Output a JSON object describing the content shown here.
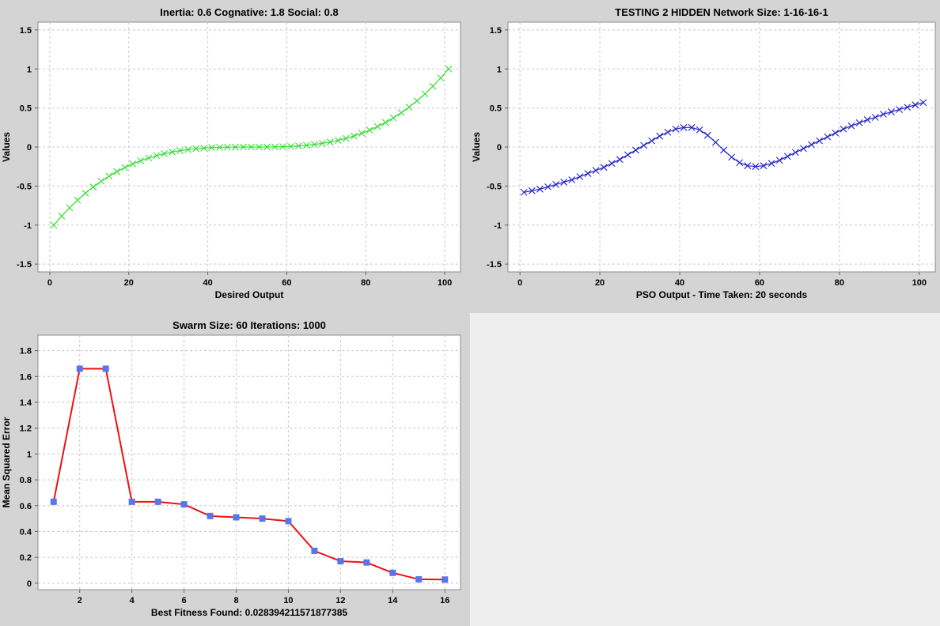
{
  "chart_data": [
    {
      "id": "desired",
      "type": "line",
      "title": "Inertia: 0.6 Cognative: 1.8 Social: 0.8",
      "xlabel": "Desired Output",
      "ylabel": "Values",
      "xlim": [
        -3,
        104
      ],
      "ylim": [
        -1.6,
        1.6
      ],
      "xticks": [
        0,
        20,
        40,
        60,
        80,
        100
      ],
      "yticks": [
        -1.5,
        -1,
        -0.5,
        0,
        0.5,
        1,
        1.5
      ],
      "grid": true,
      "marker": "x",
      "color": "#33dd33",
      "series": [
        {
          "x": [
            1,
            3,
            5,
            7,
            9,
            11,
            13,
            15,
            17,
            19,
            21,
            23,
            25,
            27,
            29,
            31,
            33,
            35,
            37,
            39,
            41,
            43,
            45,
            47,
            49,
            51,
            53,
            55,
            57,
            59,
            61,
            63,
            65,
            67,
            69,
            71,
            73,
            75,
            77,
            79,
            81,
            83,
            85,
            87,
            89,
            91,
            93,
            95,
            97,
            99,
            101
          ],
          "values": [
            -1,
            -0.884736,
            -0.778688,
            -0.681472,
            -0.592704,
            -0.512,
            -0.438976,
            -0.373248,
            -0.314432,
            -0.262144,
            -0.216,
            -0.175616,
            -0.140608,
            -0.110592,
            -0.085184,
            -0.064,
            -0.046656,
            -0.032768,
            -0.021952,
            -0.013824,
            -0.008,
            -0.004096,
            -0.001728,
            -0.000512,
            -6.4e-05,
            0,
            6.4e-05,
            0.000512,
            0.001728,
            0.004096,
            0.008,
            0.013824,
            0.021952,
            0.032768,
            0.046656,
            0.064,
            0.085184,
            0.110592,
            0.140608,
            0.175616,
            0.216,
            0.262144,
            0.314432,
            0.373248,
            0.438976,
            0.512,
            0.592704,
            0.681472,
            0.778688,
            0.884736,
            1
          ]
        }
      ]
    },
    {
      "id": "pso",
      "type": "line",
      "title": "TESTING 2 HIDDEN Network Size: 1-16-16-1",
      "xlabel": "PSO Output - Time Taken: 20 seconds",
      "ylabel": "Values",
      "xlim": [
        -3,
        104
      ],
      "ylim": [
        -1.6,
        1.6
      ],
      "xticks": [
        0,
        20,
        40,
        60,
        80,
        100
      ],
      "yticks": [
        -1.5,
        -1,
        -0.5,
        0,
        0.5,
        1,
        1.5
      ],
      "grid": true,
      "marker": "x",
      "color": "#2222cc",
      "series": [
        {
          "x": [
            1,
            3,
            5,
            7,
            9,
            11,
            13,
            15,
            17,
            19,
            21,
            23,
            25,
            27,
            29,
            31,
            33,
            35,
            37,
            39,
            41,
            43,
            45,
            47,
            49,
            51,
            53,
            55,
            57,
            59,
            61,
            63,
            65,
            67,
            69,
            71,
            73,
            75,
            77,
            79,
            81,
            83,
            85,
            87,
            89,
            91,
            93,
            95,
            97,
            99,
            101
          ],
          "values": [
            -0.58,
            -0.56,
            -0.54,
            -0.51,
            -0.48,
            -0.45,
            -0.42,
            -0.38,
            -0.34,
            -0.3,
            -0.26,
            -0.21,
            -0.16,
            -0.1,
            -0.04,
            0.02,
            0.08,
            0.14,
            0.19,
            0.23,
            0.25,
            0.25,
            0.22,
            0.15,
            0.06,
            -0.04,
            -0.13,
            -0.2,
            -0.24,
            -0.25,
            -0.24,
            -0.21,
            -0.17,
            -0.12,
            -0.07,
            -0.02,
            0.03,
            0.08,
            0.13,
            0.18,
            0.23,
            0.27,
            0.31,
            0.35,
            0.38,
            0.42,
            0.45,
            0.48,
            0.51,
            0.54,
            0.57
          ]
        }
      ]
    },
    {
      "id": "mse",
      "type": "line",
      "title": "Swarm Size: 60 Iterations: 1000",
      "xlabel": "Best Fitness Found: 0.028394211571877385",
      "ylabel": "Mean Squared Error",
      "xlim": [
        0.4,
        16.6
      ],
      "ylim": [
        -0.05,
        1.92
      ],
      "xticks": [
        2,
        4,
        6,
        8,
        10,
        12,
        14,
        16
      ],
      "yticks": [
        0,
        0.2,
        0.4,
        0.6,
        0.8,
        1,
        1.2,
        1.4,
        1.6,
        1.8
      ],
      "grid": true,
      "marker": "square",
      "color": "#ee1111",
      "marker_color": "#5577ee",
      "series": [
        {
          "x": [
            1,
            2,
            3,
            4,
            5,
            6,
            7,
            8,
            9,
            10,
            11,
            12,
            13,
            14,
            15,
            16
          ],
          "values": [
            0.63,
            1.66,
            1.66,
            0.63,
            0.63,
            0.61,
            0.52,
            0.51,
            0.5,
            0.48,
            0.25,
            0.17,
            0.16,
            0.08,
            0.03,
            0.028
          ]
        }
      ]
    }
  ]
}
